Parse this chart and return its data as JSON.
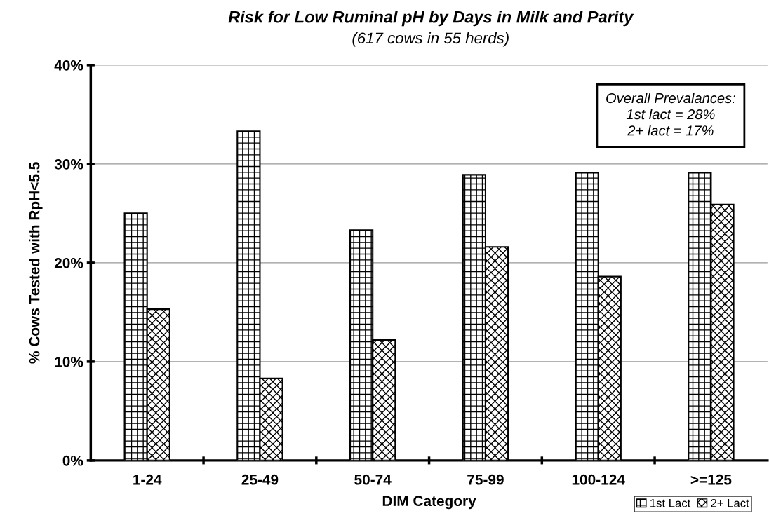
{
  "chart_data": {
    "type": "bar",
    "title": "Risk for Low Ruminal pH by Days in Milk and Parity",
    "subtitle": "(617 cows in 55 herds)",
    "xlabel": "DIM Category",
    "ylabel": "% Cows Tested with RpH<5.5",
    "categories": [
      "1-24",
      "25-49",
      "50-74",
      "75-99",
      "100-124",
      ">=125"
    ],
    "series": [
      {
        "name": "1st Lact",
        "color": "#000000",
        "values": [
          25.0,
          33.3,
          23.3,
          28.9,
          29.1,
          29.1
        ]
      },
      {
        "name": "2+ Lact",
        "color": "#000000",
        "values": [
          15.3,
          8.3,
          12.2,
          21.6,
          18.6,
          25.9
        ]
      }
    ],
    "ylim": [
      0,
      40
    ],
    "yticks": [
      {
        "value": 0,
        "label": "0%"
      },
      {
        "value": 10,
        "label": "10%"
      },
      {
        "value": 20,
        "label": "20%"
      },
      {
        "value": 30,
        "label": "30%"
      },
      {
        "value": 40,
        "label": "40%"
      }
    ],
    "grid": "y",
    "legend": "bottom right",
    "annotations": [
      "Overall Prevalances:\n1st lact = 28%\n2+ lact = 17%"
    ]
  }
}
